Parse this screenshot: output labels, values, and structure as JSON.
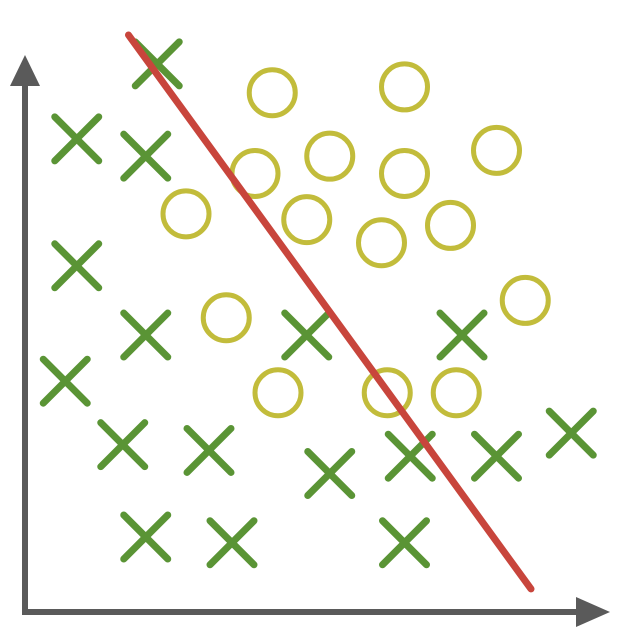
{
  "chart_data": {
    "type": "scatter",
    "title": "",
    "xlabel": "",
    "ylabel": "",
    "grid": false,
    "legend": "none",
    "xlim": [
      0,
      100
    ],
    "ylim": [
      0,
      100
    ],
    "series": [
      {
        "marker": "x",
        "color": "#5a9435",
        "points": [
          [
            23,
            95
          ],
          [
            9,
            82
          ],
          [
            21,
            79
          ],
          [
            9,
            60
          ],
          [
            21,
            48
          ],
          [
            49,
            48
          ],
          [
            76,
            48
          ],
          [
            7,
            40
          ],
          [
            17,
            29
          ],
          [
            32,
            28
          ],
          [
            53,
            24
          ],
          [
            67,
            27
          ],
          [
            82,
            27
          ],
          [
            95,
            31
          ],
          [
            21,
            13
          ],
          [
            36,
            12
          ],
          [
            66,
            12
          ]
        ]
      },
      {
        "marker": "circle",
        "color": "#c2bc3b",
        "points": [
          [
            43,
            90
          ],
          [
            66,
            91
          ],
          [
            53,
            79
          ],
          [
            40,
            76
          ],
          [
            66,
            76
          ],
          [
            82,
            80
          ],
          [
            28,
            69
          ],
          [
            49,
            68
          ],
          [
            62,
            64
          ],
          [
            74,
            67
          ],
          [
            87,
            54
          ],
          [
            35,
            51
          ],
          [
            44,
            38
          ],
          [
            63,
            38
          ],
          [
            75,
            38
          ]
        ]
      }
    ],
    "decision_line": {
      "color": "#c8453c",
      "from": [
        18,
        100
      ],
      "to": [
        88,
        4
      ]
    },
    "axis_color": "#5a5a5a"
  }
}
